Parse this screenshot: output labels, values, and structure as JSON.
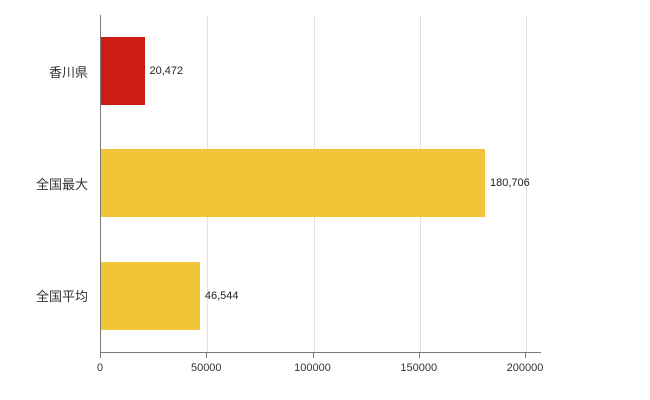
{
  "chart_data": {
    "type": "bar",
    "orientation": "horizontal",
    "title": "",
    "categories": [
      "香川県",
      "全国最大",
      "全国平均"
    ],
    "values": [
      20472,
      180706,
      46544
    ],
    "value_labels": [
      "20,472",
      "180,706",
      "46,544"
    ],
    "bar_colors": [
      "#cc1d15",
      "#f2c437",
      "#f2c437"
    ],
    "ticks": [
      0,
      50000,
      100000,
      150000,
      200000
    ],
    "tick_labels": [
      "0",
      "50000",
      "100000",
      "150000",
      "200000"
    ],
    "xlim": [
      0,
      207000
    ],
    "grid": "vertical-gridlines",
    "legend": "none"
  },
  "colors": {
    "grid": "#e2e2e2",
    "axis": "#7a7a7a",
    "text": "#333333"
  }
}
